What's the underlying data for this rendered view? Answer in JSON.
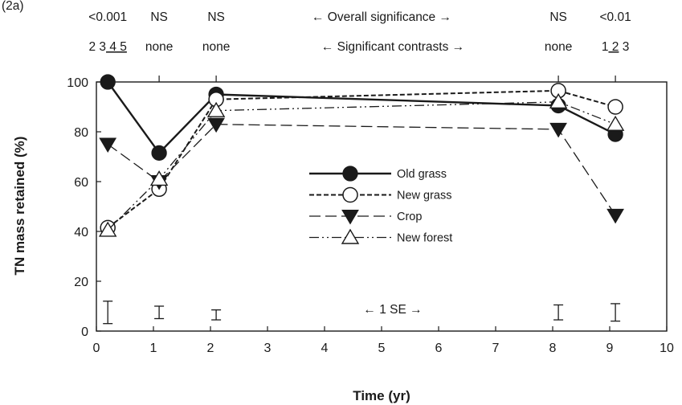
{
  "chart_data": {
    "type": "line",
    "panel_label": "(2a)",
    "xlabel": "Time (yr)",
    "ylabel": "TN mass retained (%)",
    "xlim": [
      0,
      10
    ],
    "ylim": [
      0,
      100
    ],
    "x_ticks": [
      0,
      1,
      2,
      3,
      4,
      5,
      6,
      7,
      8,
      9,
      10
    ],
    "y_ticks": [
      0,
      20,
      40,
      60,
      80,
      100
    ],
    "grid": false,
    "legend_position": "center",
    "series": [
      {
        "name": "Old grass",
        "marker": "filled-circle",
        "line": "solid",
        "x": [
          0.2,
          1.1,
          2.1,
          8.1,
          9.1
        ],
        "y": [
          100,
          71.5,
          95,
          90.5,
          79
        ]
      },
      {
        "name": "New grass",
        "marker": "open-circle",
        "line": "dashed",
        "x": [
          0.2,
          1.1,
          2.1,
          8.1,
          9.1
        ],
        "y": [
          41.5,
          57,
          93,
          96.5,
          90
        ]
      },
      {
        "name": "Crop",
        "marker": "filled-triangle-down",
        "line": "long-dashed",
        "x": [
          0.2,
          1.1,
          2.1,
          8.1,
          9.1
        ],
        "y": [
          75,
          60,
          83,
          81,
          46.5
        ]
      },
      {
        "name": "New forest",
        "marker": "open-triangle-up",
        "line": "dash-dot-dot",
        "x": [
          0.2,
          1.1,
          2.1,
          8.1,
          9.1
        ],
        "y": [
          40.5,
          61,
          88.5,
          92,
          83
        ]
      }
    ],
    "error_bars_1se": [
      {
        "x": 0.2,
        "center": 7.5,
        "half": 4.5
      },
      {
        "x": 1.1,
        "center": 7.5,
        "half": 2.5
      },
      {
        "x": 2.1,
        "center": 6.5,
        "half": 2
      },
      {
        "x": 8.1,
        "center": 7.5,
        "half": 3
      },
      {
        "x": 9.1,
        "center": 7.5,
        "half": 3.5
      }
    ],
    "error_bar_label": "← 1 SE →",
    "top_axis": {
      "ticks": [
        0.2,
        1.1,
        2.1,
        8.1,
        9.1
      ],
      "overall_significance_label": "← Overall significance →",
      "overall_significance": [
        "<0.001",
        "NS",
        "NS",
        "NS",
        "<0.01"
      ],
      "significant_contrasts_label": "← Significant contrasts →",
      "significant_contrasts": [
        [
          {
            "t": "2"
          },
          {
            "t": "3"
          },
          {
            "t": "4",
            "u": true
          },
          {
            "t": "5",
            "u": true
          }
        ],
        [
          {
            "t": "none"
          }
        ],
        [
          {
            "t": "none"
          }
        ],
        [
          {
            "t": "none"
          }
        ],
        [
          {
            "t": "1"
          },
          {
            "t": "2",
            "u": true
          },
          {
            "t": "3"
          }
        ]
      ]
    }
  }
}
